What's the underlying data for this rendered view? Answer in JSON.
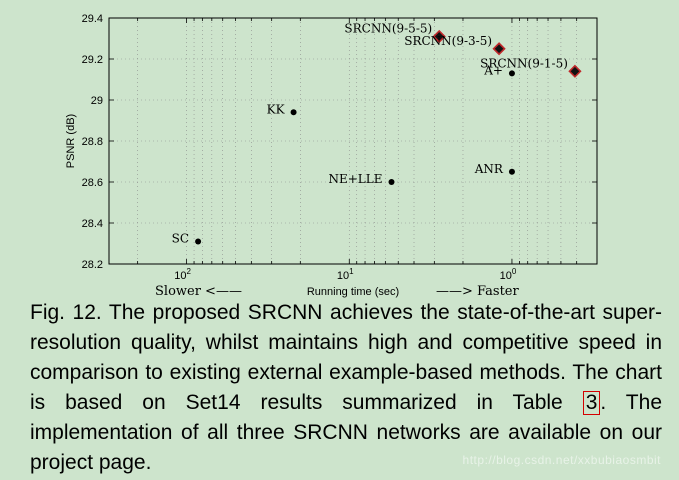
{
  "chart_data": {
    "type": "scatter",
    "ylabel": "PSNR (dB)",
    "xlabel": "Running time (sec)",
    "x_scale": "log",
    "x_reversed": true,
    "xlim": [
      300,
      0.3
    ],
    "ylim": [
      28.2,
      29.4
    ],
    "y_ticks": [
      "28.2",
      "28.4",
      "28.6",
      "28.8",
      "29",
      "29.2",
      "29.4"
    ],
    "x_ticks": [
      {
        "value": 100,
        "base": "10",
        "exp": "2"
      },
      {
        "value": 10,
        "base": "10",
        "exp": "1"
      },
      {
        "value": 1,
        "base": "10",
        "exp": "0"
      }
    ],
    "grid": true,
    "direction_left": "Slower <——",
    "direction_right": "——> Faster",
    "points": [
      {
        "label": "SC",
        "x": 85,
        "y": 28.31,
        "marker": "dot",
        "label_side": "left"
      },
      {
        "label": "KK",
        "x": 22,
        "y": 28.94,
        "marker": "dot",
        "label_side": "left"
      },
      {
        "label": "NE+LLE",
        "x": 5.5,
        "y": 28.6,
        "marker": "dot",
        "label_side": "left"
      },
      {
        "label": "ANR",
        "x": 1.0,
        "y": 28.65,
        "marker": "dot",
        "label_side": "left"
      },
      {
        "label": "A+",
        "x": 1.0,
        "y": 29.13,
        "marker": "dot",
        "label_side": "left"
      },
      {
        "label": "SRCNN(9-5-5)",
        "x": 2.8,
        "y": 29.31,
        "marker": "diamond",
        "label_side": "left-up"
      },
      {
        "label": "SRCNN(9-3-5)",
        "x": 1.2,
        "y": 29.25,
        "marker": "diamond",
        "label_side": "left-up"
      },
      {
        "label": "SRCNN(9-1-5)",
        "x": 0.41,
        "y": 29.14,
        "marker": "diamond",
        "label_side": "left-up"
      }
    ]
  },
  "caption": {
    "prefix": "Fig. 12.   The proposed SRCNN achieves the state-of-the-art super-resolution quality, whilst maintains high and competitive speed in comparison to existing external example-based methods. The chart is based on Set14 results summarized in Table ",
    "ref": "3",
    "suffix": ". The implementation of all three SRCNN networks are available on our project page."
  },
  "watermark": "http://blog.csdn.net/xxbubiaosmbit"
}
